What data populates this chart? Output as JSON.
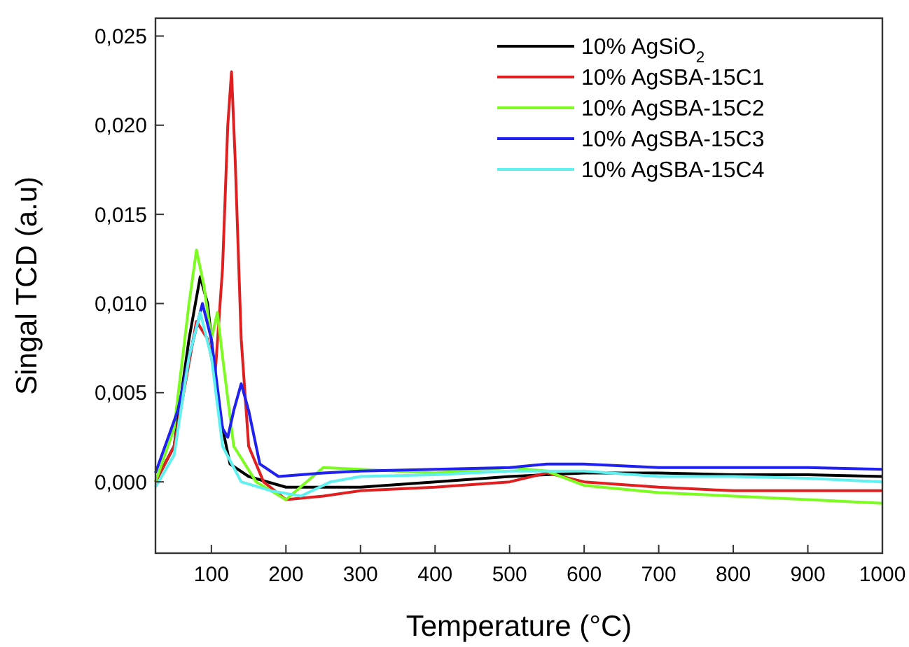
{
  "chart_data": {
    "type": "line",
    "xlabel": "Temperature (°C)",
    "ylabel": "Singal TCD  (a.u)",
    "xlim": [
      25,
      1000
    ],
    "xticks": [
      100,
      200,
      300,
      400,
      500,
      600,
      700,
      800,
      900,
      1000
    ],
    "ylim": [
      -0.004,
      0.026
    ],
    "yticks": [
      {
        "value": 0,
        "label": "0,000"
      },
      {
        "value": 0.005,
        "label": "0,005"
      },
      {
        "value": 0.01,
        "label": "0,010"
      },
      {
        "value": 0.015,
        "label": "0,015"
      },
      {
        "value": 0.02,
        "label": "0,020"
      },
      {
        "value": 0.025,
        "label": "0,025"
      }
    ],
    "grid": false,
    "legend": "top right",
    "marker": "none",
    "line_style": "solid",
    "series": [
      {
        "name": "10% AgSiO$_{2}$",
        "color": "#000000",
        "x": [
          25,
          50,
          70,
          85,
          95,
          110,
          125,
          150,
          200,
          300,
          400,
          500,
          600,
          700,
          800,
          900,
          1000
        ],
        "values": [
          0,
          0.002,
          0.008,
          0.0115,
          0.01,
          0.004,
          0.001,
          0.0003,
          -0.0003,
          -0.0003,
          0,
          0.0003,
          0.0005,
          0.0005,
          0.0004,
          0.0004,
          0.0003
        ]
      },
      {
        "name": "10% AgSBA-15C1",
        "color": "#e02020",
        "x": [
          25,
          50,
          80,
          95,
          105,
          115,
          122,
          127,
          132,
          140,
          150,
          170,
          200,
          250,
          300,
          400,
          500,
          550,
          600,
          700,
          800,
          900,
          1000
        ],
        "values": [
          0,
          0.002,
          0.009,
          0.008,
          0.006,
          0.012,
          0.02,
          0.023,
          0.018,
          0.008,
          0.002,
          0,
          -0.001,
          -0.0008,
          -0.0005,
          -0.0003,
          0,
          0.0005,
          0,
          -0.0003,
          -0.0005,
          -0.0005,
          -0.0005
        ]
      },
      {
        "name": "10% AgSBA-15C2",
        "color": "#7cfc20",
        "x": [
          25,
          50,
          70,
          80,
          90,
          100,
          108,
          115,
          130,
          160,
          200,
          250,
          300,
          400,
          500,
          550,
          600,
          700,
          800,
          900,
          1000
        ],
        "values": [
          0,
          0.003,
          0.01,
          0.013,
          0.011,
          0.008,
          0.0095,
          0.007,
          0.002,
          0,
          -0.001,
          0.0008,
          0.0007,
          0.0005,
          0.0008,
          0.0006,
          -0.0002,
          -0.0006,
          -0.0008,
          -0.001,
          -0.0012
        ]
      },
      {
        "name": "10% AgSBA-15C3",
        "color": "#2020f0",
        "x": [
          25,
          55,
          70,
          88,
          100,
          115,
          122,
          130,
          140,
          150,
          165,
          190,
          250,
          300,
          400,
          500,
          550,
          600,
          700,
          800,
          900,
          1000
        ],
        "values": [
          0.0005,
          0.004,
          0.007,
          0.01,
          0.008,
          0.003,
          0.0025,
          0.004,
          0.0055,
          0.004,
          0.001,
          0.0003,
          0.0005,
          0.0006,
          0.0007,
          0.0008,
          0.001,
          0.001,
          0.0008,
          0.0008,
          0.0008,
          0.0007
        ]
      },
      {
        "name": "10% AgSBA-15C4",
        "color": "#60f0f0",
        "x": [
          25,
          50,
          70,
          85,
          100,
          115,
          140,
          180,
          220,
          260,
          300,
          400,
          500,
          600,
          700,
          800,
          900,
          1000
        ],
        "values": [
          -0.0003,
          0.0015,
          0.007,
          0.0095,
          0.007,
          0.002,
          0,
          -0.0005,
          -0.0008,
          0,
          0.0003,
          0.0004,
          0.0006,
          0.0006,
          0.0003,
          0.0003,
          0.0002,
          0
        ]
      }
    ]
  }
}
